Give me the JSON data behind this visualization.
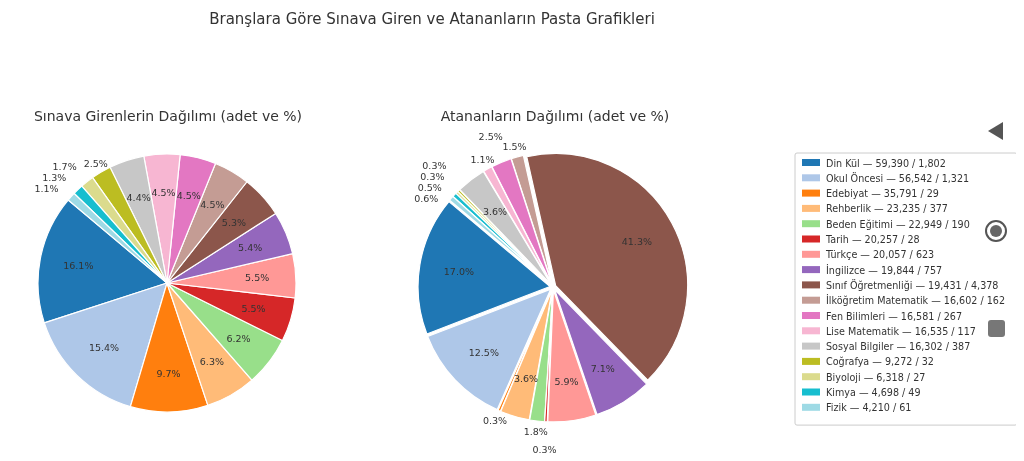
{
  "chart_data": [
    {
      "type": "pie",
      "title": "Branşlara Göre Sınava Giren ve Atananların Pasta Grafikleri",
      "subtitle": "Sınava Girenlerin Dağılımı (adet ve %)",
      "categories": [
        null,
        null,
        null,
        null,
        null,
        null,
        null,
        null,
        null,
        null,
        null,
        null,
        null,
        null,
        null,
        null,
        null
      ],
      "values": [
        16.1,
        15.4,
        9.7,
        6.3,
        6.2,
        5.5,
        5.5,
        5.4,
        5.3,
        4.5,
        4.5,
        4.5,
        4.4,
        2.5,
        1.7,
        1.3,
        1.1
      ],
      "value_labels": [
        "16.1%",
        "15.4%",
        "9.7%",
        "6.3%",
        "6.2%",
        "5.5%",
        "5.5%",
        "5.4%",
        "5.3%",
        "4.5%",
        "4.5%",
        "4.5%",
        "4.4%",
        "2.5%",
        "1.7%",
        "1.3%",
        "1.1%"
      ],
      "colors": [
        "#1f77b4",
        "#aec7e8",
        "#ff7f0e",
        "#ffbb78",
        "#98df8a",
        "#d62728",
        "#ff9896",
        "#9467bd",
        "#8c564b",
        "#c49c94",
        "#e377c2",
        "#f7b6d2",
        "#c7c7c7",
        "#bcbd22",
        "#dbdb8d",
        "#17becf",
        "#9edae5"
      ]
    },
    {
      "type": "pie",
      "title": "Atananların Dağılımı (adet ve %)",
      "legend": "right",
      "categories": [
        "Din Kül — 59,390 / 1,802",
        "Okul Öncesi — 56,542 / 1,321",
        "Edebiyat — 35,791 / 29",
        "Rehberlik — 23,235 / 377",
        "Beden Eğitimi — 22,949 / 190",
        "Tarih — 20,257 / 28",
        "Türkçe — 20,057 / 623",
        "İngilizce — 19,844 / 757",
        "Sınıf Öğretmenliği — 19,431 / 4,378",
        "İlköğretim Matematik — 16,602 / 162",
        "Fen Bilimleri — 16,581 / 267",
        "Lise Matematik — 16,535 / 117",
        "Sosyal Bilgiler — 16,302 / 387",
        "Coğrafya — 9,272 / 32",
        "Biyoloji — 6,318 / 27",
        "Kimya — 4,698 / 49",
        "Fizik — 4,210 / 61"
      ],
      "values": [
        17.0,
        12.5,
        0.3,
        3.6,
        1.8,
        0.3,
        5.9,
        7.1,
        41.3,
        1.5,
        2.5,
        1.1,
        3.6,
        0.3,
        0.3,
        0.5,
        0.6
      ],
      "value_labels": [
        "17.0%",
        "12.5%",
        "0.3%",
        "3.6%",
        "1.8%",
        "0.3%",
        "5.9%",
        "7.1%",
        "41.3%",
        "1.5%",
        "2.5%",
        "1.1%",
        "3.6%",
        "0.3%",
        "0.3%",
        "0.5%",
        "0.6%"
      ],
      "colors": [
        "#1f77b4",
        "#aec7e8",
        "#ff7f0e",
        "#ffbb78",
        "#98df8a",
        "#d62728",
        "#ff9896",
        "#9467bd",
        "#8c564b",
        "#c49c94",
        "#e377c2",
        "#f7b6d2",
        "#c7c7c7",
        "#bcbd22",
        "#dbdb8d",
        "#17becf",
        "#9edae5"
      ]
    }
  ]
}
